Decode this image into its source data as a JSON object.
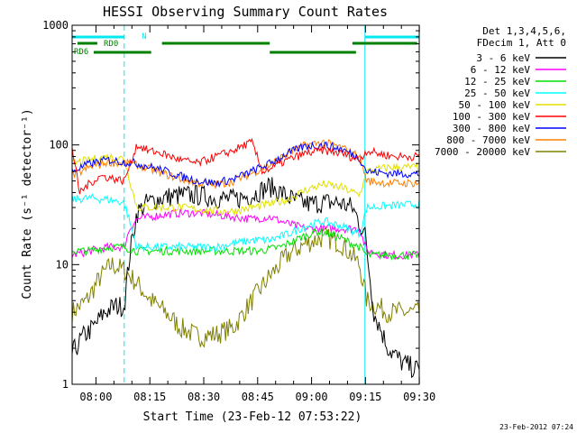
{
  "chart_data": {
    "type": "line",
    "title": "HESSI Observing Summary Count Rates",
    "xlabel": "Start Time (23-Feb-12 07:53:22)",
    "ylabel": "Count Rate (s⁻¹ detector⁻¹)",
    "x_range": [
      "07:53:22",
      "09:30"
    ],
    "x_ticks": [
      "08:00",
      "08:15",
      "08:30",
      "08:45",
      "09:00",
      "09:15",
      "09:30"
    ],
    "y_scale": "log",
    "ylim": [
      1,
      1000
    ],
    "y_ticks": [
      "1",
      "10",
      "100",
      "1000"
    ],
    "grid": false,
    "legend_position": "right",
    "legend_header": [
      "Det 1,3,4,5,6,",
      "FDecim 1, Att 0"
    ],
    "footer_date": "23-Feb-2012 07:24",
    "annotations": {
      "n_label": "N",
      "rd0_label": "RD0",
      "rd6_label": "RD6"
    },
    "night_minutes": [
      [
        0,
        14.5
      ],
      [
        81.5,
        96.6
      ]
    ],
    "rd0_minutes": [
      [
        1.5,
        7
      ],
      [
        25,
        55
      ],
      [
        78,
        96
      ]
    ],
    "rd6_minutes": [
      [
        6,
        22
      ],
      [
        55,
        79
      ]
    ],
    "series": [
      {
        "name": "3 - 6 keV",
        "color": "#000000",
        "x": [
          0,
          3,
          6,
          9,
          12,
          14.5,
          16,
          18,
          21,
          25,
          30,
          35,
          40,
          45,
          50,
          55,
          58,
          62,
          66,
          70,
          74,
          78,
          81.5,
          84,
          88,
          92,
          96.6
        ],
        "y": [
          1.8,
          2.5,
          3,
          4,
          4.5,
          4.5,
          12,
          27,
          33,
          36,
          38,
          38,
          36,
          35,
          38,
          45,
          40,
          34,
          32,
          33,
          33,
          30,
          18,
          4,
          2,
          1.5,
          1.3
        ]
      },
      {
        "name": "6 - 12 keV",
        "color": "#ff00ff",
        "x": [
          0,
          5,
          10,
          14.5,
          16,
          18,
          25,
          30,
          35,
          40,
          45,
          50,
          55,
          60,
          65,
          70,
          75,
          80,
          82,
          88,
          96.6
        ],
        "y": [
          12,
          13,
          14,
          14,
          20,
          24,
          26,
          27,
          27,
          26,
          25,
          24,
          25,
          22,
          20,
          20,
          20,
          20,
          13,
          12,
          12
        ]
      },
      {
        "name": "12 - 25 keV",
        "color": "#00e000",
        "x": [
          0,
          5,
          10,
          14.5,
          18,
          25,
          35,
          45,
          52,
          58,
          64,
          68,
          72,
          76,
          80,
          82,
          88,
          96.6
        ],
        "y": [
          13,
          13,
          14,
          14,
          13,
          13,
          13,
          13,
          13,
          14,
          17,
          19,
          18,
          16,
          14,
          12,
          12,
          12
        ]
      },
      {
        "name": "25 - 50 keV",
        "color": "#00ffff",
        "x": [
          0,
          5,
          10,
          14.5,
          18,
          25,
          30,
          35,
          40,
          45,
          50,
          55,
          60,
          65,
          70,
          75,
          80,
          82,
          88,
          96.6
        ],
        "y": [
          35,
          36,
          35,
          33,
          14,
          14,
          14,
          14,
          14,
          15,
          16,
          16,
          18,
          21,
          23,
          21,
          18,
          30,
          31,
          32
        ]
      },
      {
        "name": "50 - 100 keV",
        "color": "#e0e000",
        "x": [
          0,
          5,
          10,
          14.5,
          18,
          25,
          30,
          35,
          40,
          45,
          50,
          55,
          60,
          65,
          70,
          75,
          80,
          82,
          88,
          96.6
        ],
        "y": [
          70,
          75,
          80,
          77,
          30,
          30,
          30,
          29,
          28,
          28,
          30,
          32,
          35,
          42,
          47,
          44,
          38,
          60,
          65,
          65
        ]
      },
      {
        "name": "100 - 300 keV",
        "color": "#ff0000",
        "x": [
          0,
          2,
          5,
          8,
          12,
          14.5,
          18,
          21,
          25,
          30,
          35,
          40,
          45,
          48,
          50,
          53,
          56,
          60,
          65,
          70,
          75,
          80,
          82,
          85,
          90,
          96.6
        ],
        "y": [
          95,
          40,
          48,
          55,
          52,
          50,
          100,
          90,
          85,
          75,
          70,
          80,
          90,
          100,
          105,
          60,
          65,
          75,
          85,
          90,
          85,
          75,
          90,
          85,
          80,
          80
        ]
      },
      {
        "name": "300 - 800 keV",
        "color": "#0000ff",
        "x": [
          0,
          5,
          10,
          14.5,
          18,
          25,
          30,
          35,
          40,
          45,
          50,
          55,
          60,
          65,
          70,
          75,
          80,
          82,
          88,
          96.6
        ],
        "y": [
          60,
          70,
          75,
          72,
          70,
          62,
          55,
          50,
          48,
          52,
          60,
          70,
          85,
          98,
          100,
          92,
          78,
          60,
          58,
          57
        ]
      },
      {
        "name": "800 - 7000 keV",
        "color": "#ff8000",
        "x": [
          0,
          5,
          10,
          14.5,
          18,
          25,
          30,
          35,
          40,
          45,
          50,
          55,
          60,
          65,
          70,
          75,
          80,
          82,
          88,
          96.6
        ],
        "y": [
          55,
          65,
          72,
          70,
          68,
          58,
          52,
          48,
          46,
          50,
          58,
          68,
          85,
          100,
          105,
          95,
          80,
          50,
          48,
          48
        ]
      },
      {
        "name": "7000 - 20000 keV",
        "color": "#808000",
        "x": [
          0,
          4,
          8,
          11,
          14.5,
          18,
          22,
          26,
          30,
          35,
          40,
          45,
          50,
          55,
          60,
          65,
          70,
          75,
          80,
          82,
          88,
          96.6
        ],
        "y": [
          4,
          5,
          8,
          10,
          9,
          7,
          5,
          4,
          3,
          2.5,
          2.6,
          3,
          5,
          8,
          12,
          15,
          17,
          15,
          10,
          5,
          4,
          4
        ]
      }
    ]
  }
}
